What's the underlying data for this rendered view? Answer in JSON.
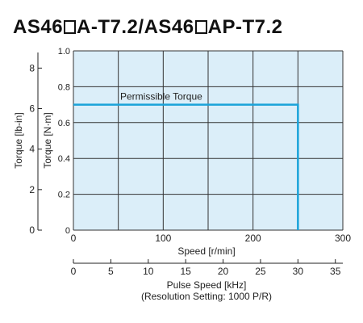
{
  "title": {
    "part1": "AS46",
    "part2": "A-T7.2/AS46",
    "part3": "AP-T7.2"
  },
  "colors": {
    "plot_bg": "#dbeef9",
    "grid": "#333333",
    "torque_line": "#1aa3d9",
    "axis": "#222222"
  },
  "chart_data": {
    "type": "line",
    "title": "AS46□A-T7.2/AS46□AP-T7.2",
    "xlabel": "Speed [r/min]",
    "ylabel": "Torque [N·m]",
    "xlim": [
      0,
      300
    ],
    "ylim": [
      0,
      1.0
    ],
    "x_ticks": [
      0,
      100,
      200,
      300
    ],
    "x_gridlines": [
      0,
      50,
      100,
      150,
      200,
      250,
      300
    ],
    "y_ticks": [
      0,
      0.2,
      0.4,
      0.6,
      0.8,
      1.0
    ],
    "y_tick_labels": [
      "0",
      "0.2",
      "0.4",
      "0.6",
      "0.8",
      "1.0"
    ],
    "grid": true,
    "secondary_y": {
      "label": "Torque [lb-in]",
      "ticks": [
        0,
        2,
        4,
        6,
        8
      ],
      "lim": [
        0,
        8.85
      ]
    },
    "secondary_x": {
      "label": "Pulse Speed [kHz]",
      "sublabel": "(Resolution Setting: 1000 P/R)",
      "ticks": [
        0,
        5,
        10,
        15,
        20,
        25,
        30,
        35
      ],
      "lim": [
        0,
        36
      ]
    },
    "series": [
      {
        "name": "Permissible Torque",
        "x": [
          0,
          250,
          250
        ],
        "y": [
          0.7,
          0.7,
          0
        ]
      }
    ]
  }
}
